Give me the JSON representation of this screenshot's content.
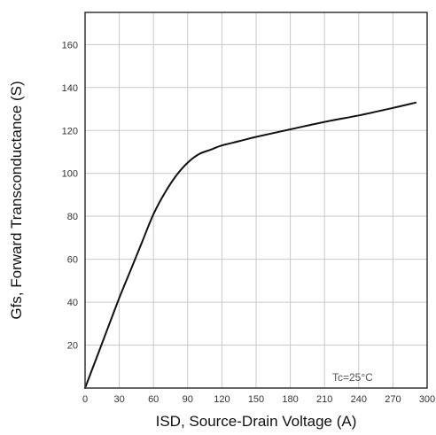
{
  "chart_data": {
    "type": "line",
    "xlabel": "ISD, Source-Drain Voltage (A)",
    "ylabel": "Gfs, Forward Transconductance (S)",
    "xlim": [
      0,
      300
    ],
    "ylim": [
      0,
      175
    ],
    "x_ticks": [
      0,
      30,
      60,
      90,
      120,
      150,
      180,
      210,
      240,
      270,
      300
    ],
    "y_ticks": [
      20,
      40,
      60,
      80,
      100,
      120,
      140,
      160
    ],
    "x_tick_labels": [
      "0",
      "30",
      "60",
      "90",
      "120",
      "150",
      "180",
      "210",
      "240",
      "270",
      "300"
    ],
    "y_tick_labels": [
      "20",
      "40",
      "60",
      "80",
      "100",
      "120",
      "140",
      "160"
    ],
    "grid": true,
    "annotation": "Tc=25°C",
    "series": [
      {
        "x": [
          0,
          10,
          20,
          30,
          40,
          50,
          60,
          70,
          80,
          90,
          100,
          110,
          120,
          135,
          150,
          180,
          210,
          240,
          270,
          290
        ],
        "y": [
          0,
          14,
          28,
          42,
          55,
          68,
          81,
          91,
          99,
          105,
          109,
          111,
          113,
          115,
          117,
          120.5,
          124,
          127,
          130.5,
          133
        ]
      }
    ]
  },
  "style": {
    "line_color": "#111111",
    "grid_color": "#c9c9c9",
    "frame_color": "#333333"
  }
}
